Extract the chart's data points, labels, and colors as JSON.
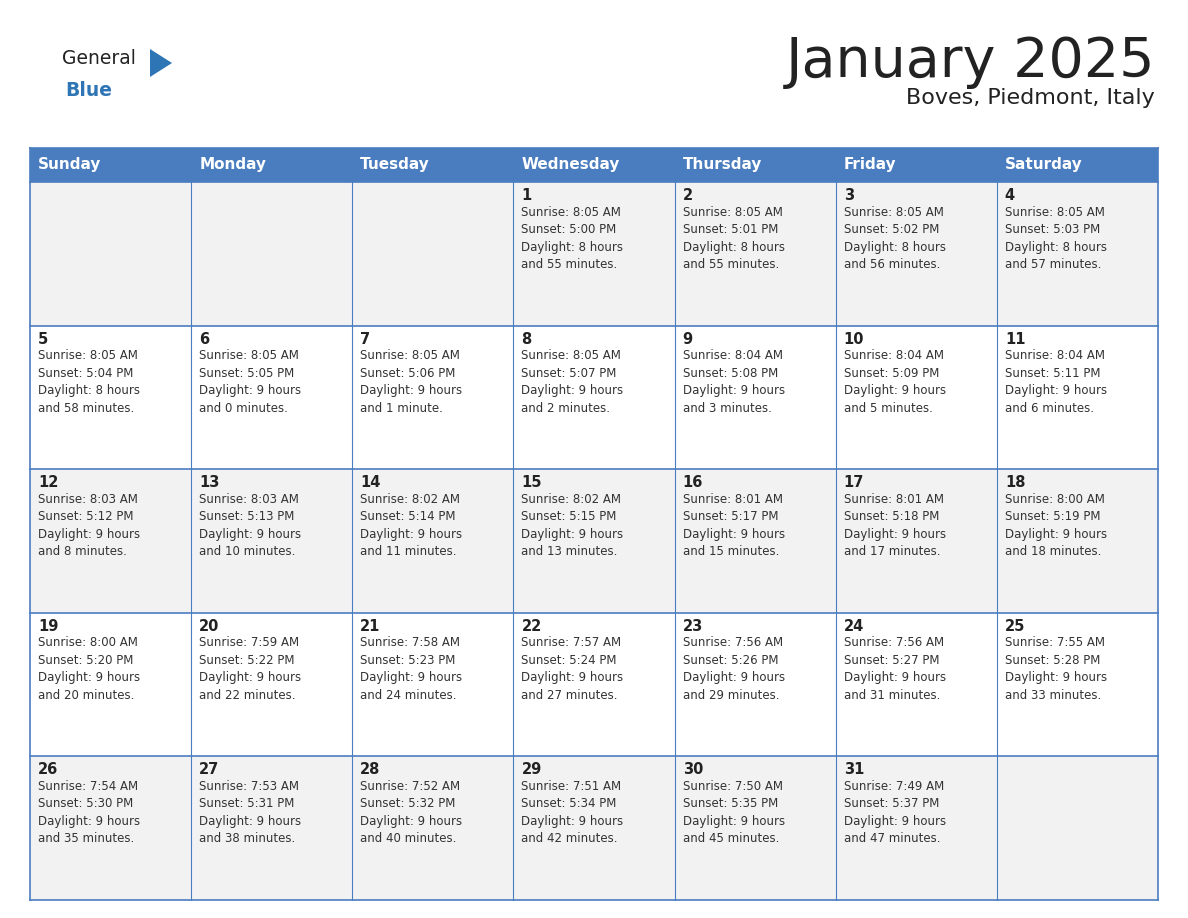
{
  "title": "January 2025",
  "subtitle": "Boves, Piedmont, Italy",
  "days_of_week": [
    "Sunday",
    "Monday",
    "Tuesday",
    "Wednesday",
    "Thursday",
    "Friday",
    "Saturday"
  ],
  "header_bg": "#4a7dbf",
  "header_text": "#FFFFFF",
  "row_bg_odd": "#f2f2f2",
  "row_bg_even": "#ffffff",
  "border_color": "#4a7dbf",
  "text_color": "#333333",
  "day_number_color": "#222222",
  "logo_general_color": "#222222",
  "logo_blue_color": "#2E75B6",
  "logo_triangle_color": "#2E75B6",
  "title_color": "#222222",
  "subtitle_color": "#222222",
  "calendar_data": [
    [
      {
        "day": null,
        "sunrise": null,
        "sunset": null,
        "daylight_line1": null,
        "daylight_line2": null
      },
      {
        "day": null,
        "sunrise": null,
        "sunset": null,
        "daylight_line1": null,
        "daylight_line2": null
      },
      {
        "day": null,
        "sunrise": null,
        "sunset": null,
        "daylight_line1": null,
        "daylight_line2": null
      },
      {
        "day": 1,
        "sunrise": "8:05 AM",
        "sunset": "5:00 PM",
        "daylight_line1": "Daylight: 8 hours",
        "daylight_line2": "and 55 minutes."
      },
      {
        "day": 2,
        "sunrise": "8:05 AM",
        "sunset": "5:01 PM",
        "daylight_line1": "Daylight: 8 hours",
        "daylight_line2": "and 55 minutes."
      },
      {
        "day": 3,
        "sunrise": "8:05 AM",
        "sunset": "5:02 PM",
        "daylight_line1": "Daylight: 8 hours",
        "daylight_line2": "and 56 minutes."
      },
      {
        "day": 4,
        "sunrise": "8:05 AM",
        "sunset": "5:03 PM",
        "daylight_line1": "Daylight: 8 hours",
        "daylight_line2": "and 57 minutes."
      }
    ],
    [
      {
        "day": 5,
        "sunrise": "8:05 AM",
        "sunset": "5:04 PM",
        "daylight_line1": "Daylight: 8 hours",
        "daylight_line2": "and 58 minutes."
      },
      {
        "day": 6,
        "sunrise": "8:05 AM",
        "sunset": "5:05 PM",
        "daylight_line1": "Daylight: 9 hours",
        "daylight_line2": "and 0 minutes."
      },
      {
        "day": 7,
        "sunrise": "8:05 AM",
        "sunset": "5:06 PM",
        "daylight_line1": "Daylight: 9 hours",
        "daylight_line2": "and 1 minute."
      },
      {
        "day": 8,
        "sunrise": "8:05 AM",
        "sunset": "5:07 PM",
        "daylight_line1": "Daylight: 9 hours",
        "daylight_line2": "and 2 minutes."
      },
      {
        "day": 9,
        "sunrise": "8:04 AM",
        "sunset": "5:08 PM",
        "daylight_line1": "Daylight: 9 hours",
        "daylight_line2": "and 3 minutes."
      },
      {
        "day": 10,
        "sunrise": "8:04 AM",
        "sunset": "5:09 PM",
        "daylight_line1": "Daylight: 9 hours",
        "daylight_line2": "and 5 minutes."
      },
      {
        "day": 11,
        "sunrise": "8:04 AM",
        "sunset": "5:11 PM",
        "daylight_line1": "Daylight: 9 hours",
        "daylight_line2": "and 6 minutes."
      }
    ],
    [
      {
        "day": 12,
        "sunrise": "8:03 AM",
        "sunset": "5:12 PM",
        "daylight_line1": "Daylight: 9 hours",
        "daylight_line2": "and 8 minutes."
      },
      {
        "day": 13,
        "sunrise": "8:03 AM",
        "sunset": "5:13 PM",
        "daylight_line1": "Daylight: 9 hours",
        "daylight_line2": "and 10 minutes."
      },
      {
        "day": 14,
        "sunrise": "8:02 AM",
        "sunset": "5:14 PM",
        "daylight_line1": "Daylight: 9 hours",
        "daylight_line2": "and 11 minutes."
      },
      {
        "day": 15,
        "sunrise": "8:02 AM",
        "sunset": "5:15 PM",
        "daylight_line1": "Daylight: 9 hours",
        "daylight_line2": "and 13 minutes."
      },
      {
        "day": 16,
        "sunrise": "8:01 AM",
        "sunset": "5:17 PM",
        "daylight_line1": "Daylight: 9 hours",
        "daylight_line2": "and 15 minutes."
      },
      {
        "day": 17,
        "sunrise": "8:01 AM",
        "sunset": "5:18 PM",
        "daylight_line1": "Daylight: 9 hours",
        "daylight_line2": "and 17 minutes."
      },
      {
        "day": 18,
        "sunrise": "8:00 AM",
        "sunset": "5:19 PM",
        "daylight_line1": "Daylight: 9 hours",
        "daylight_line2": "and 18 minutes."
      }
    ],
    [
      {
        "day": 19,
        "sunrise": "8:00 AM",
        "sunset": "5:20 PM",
        "daylight_line1": "Daylight: 9 hours",
        "daylight_line2": "and 20 minutes."
      },
      {
        "day": 20,
        "sunrise": "7:59 AM",
        "sunset": "5:22 PM",
        "daylight_line1": "Daylight: 9 hours",
        "daylight_line2": "and 22 minutes."
      },
      {
        "day": 21,
        "sunrise": "7:58 AM",
        "sunset": "5:23 PM",
        "daylight_line1": "Daylight: 9 hours",
        "daylight_line2": "and 24 minutes."
      },
      {
        "day": 22,
        "sunrise": "7:57 AM",
        "sunset": "5:24 PM",
        "daylight_line1": "Daylight: 9 hours",
        "daylight_line2": "and 27 minutes."
      },
      {
        "day": 23,
        "sunrise": "7:56 AM",
        "sunset": "5:26 PM",
        "daylight_line1": "Daylight: 9 hours",
        "daylight_line2": "and 29 minutes."
      },
      {
        "day": 24,
        "sunrise": "7:56 AM",
        "sunset": "5:27 PM",
        "daylight_line1": "Daylight: 9 hours",
        "daylight_line2": "and 31 minutes."
      },
      {
        "day": 25,
        "sunrise": "7:55 AM",
        "sunset": "5:28 PM",
        "daylight_line1": "Daylight: 9 hours",
        "daylight_line2": "and 33 minutes."
      }
    ],
    [
      {
        "day": 26,
        "sunrise": "7:54 AM",
        "sunset": "5:30 PM",
        "daylight_line1": "Daylight: 9 hours",
        "daylight_line2": "and 35 minutes."
      },
      {
        "day": 27,
        "sunrise": "7:53 AM",
        "sunset": "5:31 PM",
        "daylight_line1": "Daylight: 9 hours",
        "daylight_line2": "and 38 minutes."
      },
      {
        "day": 28,
        "sunrise": "7:52 AM",
        "sunset": "5:32 PM",
        "daylight_line1": "Daylight: 9 hours",
        "daylight_line2": "and 40 minutes."
      },
      {
        "day": 29,
        "sunrise": "7:51 AM",
        "sunset": "5:34 PM",
        "daylight_line1": "Daylight: 9 hours",
        "daylight_line2": "and 42 minutes."
      },
      {
        "day": 30,
        "sunrise": "7:50 AM",
        "sunset": "5:35 PM",
        "daylight_line1": "Daylight: 9 hours",
        "daylight_line2": "and 45 minutes."
      },
      {
        "day": 31,
        "sunrise": "7:49 AM",
        "sunset": "5:37 PM",
        "daylight_line1": "Daylight: 9 hours",
        "daylight_line2": "and 47 minutes."
      },
      {
        "day": null,
        "sunrise": null,
        "sunset": null,
        "daylight_line1": null,
        "daylight_line2": null
      }
    ]
  ]
}
